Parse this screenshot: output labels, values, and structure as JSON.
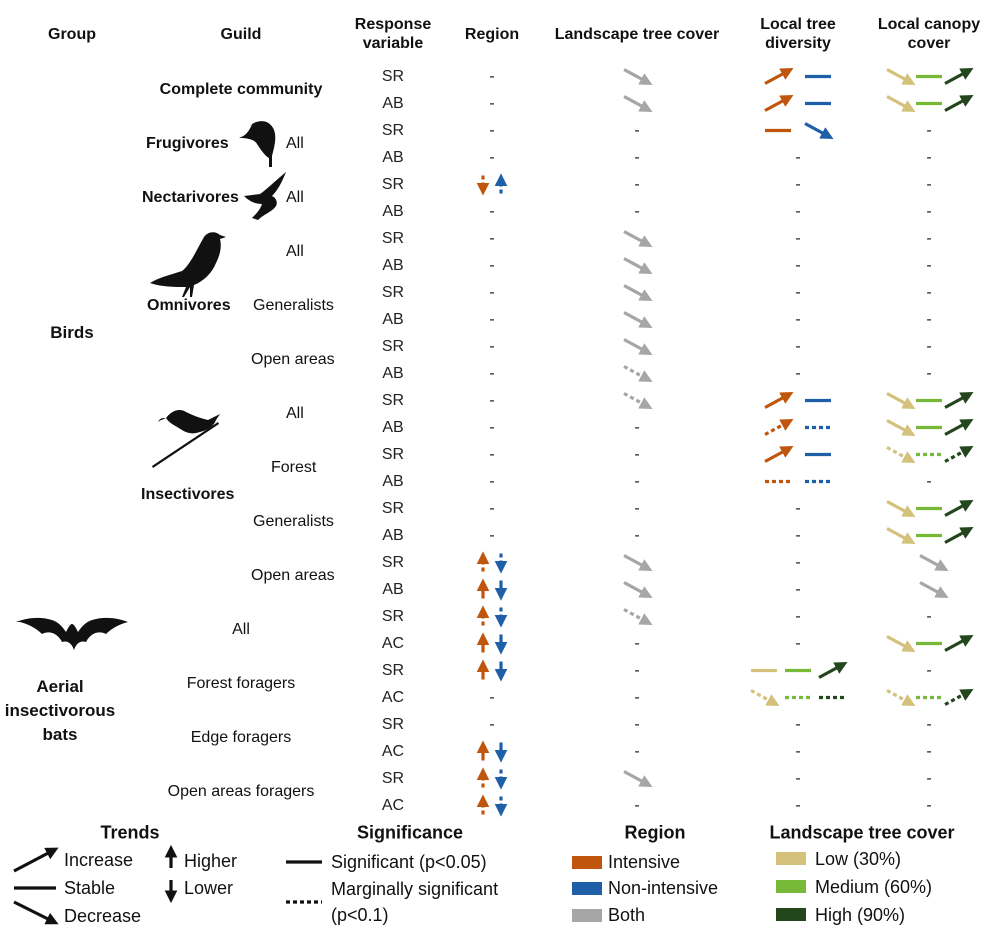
{
  "headers": {
    "group": "Group",
    "guild": "Guild",
    "response": "Response variable",
    "region": "Region",
    "landscape": "Landscape tree cover",
    "diversity": "Local tree diversity",
    "canopy": "Local canopy cover"
  },
  "groups": {
    "birds": "Birds",
    "bats": "Aerial insectivorous bats"
  },
  "guilds": {
    "complete": "Complete community",
    "frugivores": "Frugivores",
    "nectarivores": "Nectarivores",
    "omnivores": "Omnivores",
    "insectivores": "Insectivores"
  },
  "subguilds": {
    "frug_all": "All",
    "nect_all": "All",
    "omni_all": "All",
    "omni_gen": "Generalists",
    "omni_open": "Open areas",
    "ins_all": "All",
    "ins_forest": "Forest",
    "ins_gen": "Generalists",
    "ins_open": "Open areas",
    "bat_all": "All",
    "bat_forest": "Forest foragers",
    "bat_edge": "Edge foragers",
    "bat_open": "Open areas foragers"
  },
  "dash": "-",
  "rows": [
    {
      "resp": "SR",
      "reg": "-",
      "land": "g-dec",
      "div": [
        "o-inc",
        "b-st"
      ],
      "can": [
        "l-dec",
        "m-st",
        "h-inc"
      ]
    },
    {
      "resp": "AB",
      "reg": "-",
      "land": "g-dec",
      "div": [
        "o-inc",
        "b-st"
      ],
      "can": [
        "l-dec",
        "m-st",
        "h-inc"
      ]
    },
    {
      "resp": "SR",
      "reg": "-",
      "land": "-",
      "div": [
        "o-st",
        "b-dec"
      ],
      "can": "-"
    },
    {
      "resp": "AB",
      "reg": "-",
      "land": "-",
      "div": "-",
      "can": "-"
    },
    {
      "resp": "SR",
      "reg": "od-bu",
      "land": "-",
      "div": "-",
      "can": "-"
    },
    {
      "resp": "AB",
      "reg": "-",
      "land": "-",
      "div": "-",
      "can": "-"
    },
    {
      "resp": "SR",
      "reg": "-",
      "land": "g-dec",
      "div": "-",
      "can": "-"
    },
    {
      "resp": "AB",
      "reg": "-",
      "land": "g-dec",
      "div": "-",
      "can": "-"
    },
    {
      "resp": "SR",
      "reg": "-",
      "land": "g-dec",
      "div": "-",
      "can": "-"
    },
    {
      "resp": "AB",
      "reg": "-",
      "land": "g-dec",
      "div": "-",
      "can": "-"
    },
    {
      "resp": "SR",
      "reg": "-",
      "land": "g-dec",
      "div": "-",
      "can": "-"
    },
    {
      "resp": "AB",
      "reg": "-",
      "land": "g-dec-d",
      "div": "-",
      "can": "-"
    },
    {
      "resp": "SR",
      "reg": "-",
      "land": "g-dec-d",
      "div": [
        "o-inc",
        "b-st"
      ],
      "can": [
        "l-dec",
        "m-st",
        "h-inc"
      ]
    },
    {
      "resp": "AB",
      "reg": "-",
      "land": "-",
      "div": [
        "o-inc-d",
        "b-st-d"
      ],
      "can": [
        "l-dec",
        "m-st",
        "h-inc"
      ]
    },
    {
      "resp": "SR",
      "reg": "-",
      "land": "-",
      "div": [
        "o-inc",
        "b-st"
      ],
      "can": [
        "l-dec-d",
        "m-st-d",
        "h-inc-d"
      ]
    },
    {
      "resp": "AB",
      "reg": "-",
      "land": "-",
      "div": [
        "o-st-d",
        "b-st-d"
      ],
      "can": "-"
    },
    {
      "resp": "SR",
      "reg": "-",
      "land": "-",
      "div": "-",
      "can": [
        "l-dec",
        "m-st",
        "h-inc"
      ]
    },
    {
      "resp": "AB",
      "reg": "-",
      "land": "-",
      "div": "-",
      "can": [
        "l-dec",
        "m-st",
        "h-inc"
      ]
    },
    {
      "resp": "SR",
      "reg": "ou-bd",
      "land": "g-dec",
      "div": "-",
      "can": "g-dec"
    },
    {
      "resp": "AB",
      "reg": "OU-BD",
      "land": "g-dec",
      "div": "-",
      "can": "g-dec"
    },
    {
      "resp": "SR",
      "reg": "ou-bd",
      "land": "g-dec-d",
      "div": "-",
      "can": "-"
    },
    {
      "resp": "AC",
      "reg": "OU-BD",
      "land": "-",
      "div": "-",
      "can": [
        "l-dec",
        "m-st",
        "h-inc"
      ]
    },
    {
      "resp": "SR",
      "reg": "OU-BD",
      "land": "-",
      "div": [
        "l-st",
        "m-st",
        "h-inc"
      ],
      "can": "-"
    },
    {
      "resp": "AC",
      "reg": "-",
      "land": "-",
      "div": [
        "l-dec-d",
        "m-st-d",
        "h-st-d"
      ],
      "can": [
        "l-dec-d",
        "m-st-d",
        "h-inc-d"
      ]
    },
    {
      "resp": "SR",
      "reg": "-",
      "land": "-",
      "div": "-",
      "can": "-"
    },
    {
      "resp": "AC",
      "reg": "OU-BD",
      "land": "-",
      "div": "-",
      "can": "-"
    },
    {
      "resp": "SR",
      "reg": "ou-bd",
      "land": "g-dec",
      "div": "-",
      "can": "-"
    },
    {
      "resp": "AC",
      "reg": "ou-bd",
      "land": "-",
      "div": "-",
      "can": "-"
    }
  ],
  "legend": {
    "trends_title": "Trends",
    "increase": "Increase",
    "stable": "Stable",
    "decrease": "Decrease",
    "higher": "Higher",
    "lower": "Lower",
    "significance_title": "Significance",
    "significant": "Significant (p<0.05)",
    "marginal_1": "Marginally significant",
    "marginal_2": "(p<0.1)",
    "region_title": "Region",
    "intensive": "Intensive",
    "nonintensive": "Non-intensive",
    "both": "Both",
    "landscape_title": "Landscape tree cover",
    "low": "Low (30%)",
    "medium": "Medium (60%)",
    "high": "High (90%)"
  },
  "colors": {
    "intensive": "#c0560e",
    "nonintensive": "#1f5fa8",
    "both": "#a6a6a6",
    "low": "#d3c17c",
    "medium": "#78b93a",
    "high": "#24461d",
    "header_bg": "#dcdcdc",
    "stripe": "#efefef"
  }
}
